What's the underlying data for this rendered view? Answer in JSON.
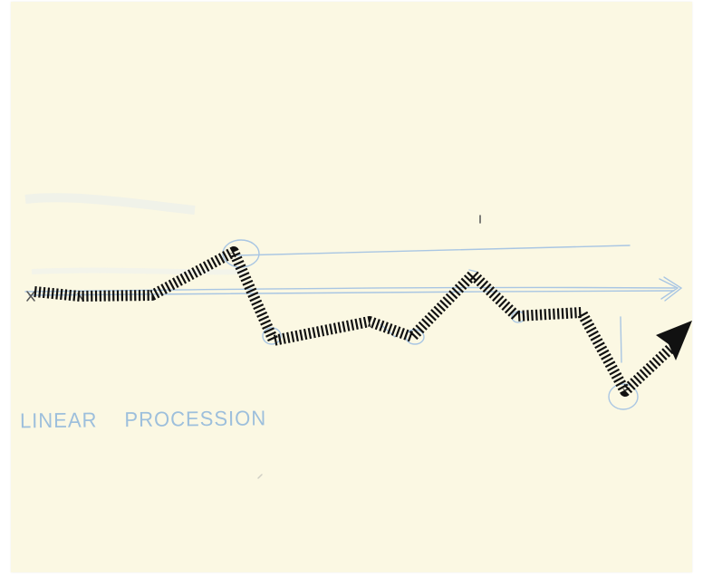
{
  "caption": {
    "word1": "LINEAR",
    "word2": "PROCESSION"
  },
  "colors": {
    "paper": "#fbf8e3",
    "pencil_blue": "#a9c6e3",
    "marker_black": "#111111"
  },
  "icons": {
    "arrowhead": "arrowhead-icon"
  }
}
